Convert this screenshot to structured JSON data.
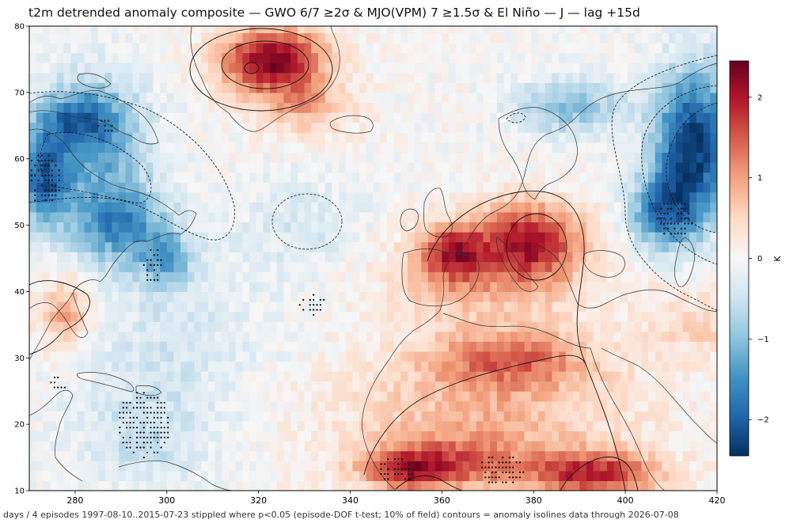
{
  "title": "t2m detrended anomaly composite — GWO 6/7 ≥2σ & MJO(VPM) 7 ≥1.5σ & El Niño — J — lag +15d",
  "footer": "days / 4 episodes   1997-08-10..2015-07-23   stippled where p<0.05 (episode-DOF t-test; 10% of field)   contours = anomaly isolines   data through 2026-07-08",
  "chart_data": {
    "type": "heatmap",
    "x_range": [
      270,
      420
    ],
    "y_range": [
      10,
      80
    ],
    "x_ticks": [
      "280",
      "300",
      "320",
      "340",
      "360",
      "380",
      "400",
      "420"
    ],
    "x_tick_values": [
      280,
      300,
      320,
      340,
      360,
      380,
      400,
      420
    ],
    "y_ticks": [
      "10",
      "20",
      "30",
      "40",
      "50",
      "60",
      "70",
      "80"
    ],
    "y_tick_values": [
      10,
      20,
      30,
      40,
      50,
      60,
      70,
      80
    ],
    "colorbar": {
      "label": "K",
      "range": [
        -2.45,
        2.45
      ],
      "ticks": [
        "−2",
        "−1",
        "0",
        "1",
        "2"
      ],
      "tick_values": [
        -2,
        -1,
        0,
        1,
        2
      ],
      "colormap": "RdBu_r",
      "colors": [
        "#053061",
        "#2166ac",
        "#4393c3",
        "#92c5de",
        "#d1e5f0",
        "#f7f7f7",
        "#fddbc7",
        "#f4a582",
        "#d6604d",
        "#b2182b",
        "#67001f"
      ]
    },
    "anomaly_blobs": [
      {
        "lon": 323,
        "lat": 75,
        "amp": 2.3,
        "sx": 8,
        "sy": 3.5
      },
      {
        "lon": 330,
        "lat": 68,
        "amp": 0.8,
        "sx": 8,
        "sy": 3
      },
      {
        "lon": 278,
        "lat": 37,
        "amp": 1.0,
        "sx": 4,
        "sy": 4
      },
      {
        "lon": 379,
        "lat": 48,
        "amp": 1.8,
        "sx": 8,
        "sy": 4
      },
      {
        "lon": 362,
        "lat": 46,
        "amp": 1.5,
        "sx": 5,
        "sy": 3
      },
      {
        "lon": 370,
        "lat": 42,
        "amp": 0.8,
        "sx": 16,
        "sy": 5
      },
      {
        "lon": 375,
        "lat": 30,
        "amp": 1.1,
        "sx": 12,
        "sy": 3
      },
      {
        "lon": 370,
        "lat": 22,
        "amp": 0.8,
        "sx": 22,
        "sy": 7
      },
      {
        "lon": 393,
        "lat": 12.5,
        "amp": 1.8,
        "sx": 10,
        "sy": 2.5
      },
      {
        "lon": 360,
        "lat": 14,
        "amp": 1.2,
        "sx": 12,
        "sy": 3
      },
      {
        "lon": 352,
        "lat": 13,
        "amp": 1.0,
        "sx": 6,
        "sy": 2
      },
      {
        "lon": 415,
        "lat": 62,
        "amp": -2.4,
        "sx": 6,
        "sy": 8
      },
      {
        "lon": 408,
        "lat": 52,
        "amp": -1.6,
        "sx": 5,
        "sy": 4
      },
      {
        "lon": 388,
        "lat": 68,
        "amp": -1.0,
        "sx": 9,
        "sy": 3
      },
      {
        "lon": 273,
        "lat": 57,
        "amp": -1.8,
        "sx": 4,
        "sy": 5
      },
      {
        "lon": 285,
        "lat": 62,
        "amp": -1.2,
        "sx": 8,
        "sy": 8
      },
      {
        "lon": 290,
        "lat": 50,
        "amp": -1.3,
        "sx": 7,
        "sy": 4
      },
      {
        "lon": 300,
        "lat": 45,
        "amp": -1.0,
        "sx": 4,
        "sy": 3
      },
      {
        "lon": 280,
        "lat": 66,
        "amp": -1.2,
        "sx": 6,
        "sy": 3
      },
      {
        "lon": 330,
        "lat": 50,
        "amp": -0.4,
        "sx": 9,
        "sy": 5
      },
      {
        "lon": 300,
        "lat": 35,
        "amp": -0.4,
        "sx": 15,
        "sy": 10
      },
      {
        "lon": 295,
        "lat": 18,
        "amp": -0.5,
        "sx": 10,
        "sy": 6
      },
      {
        "lon": 415,
        "lat": 35,
        "amp": 0.5,
        "sx": 8,
        "sy": 4
      }
    ],
    "significant_regions": [
      {
        "lon": 273,
        "lat": 57,
        "rlon": 4,
        "rlat": 4
      },
      {
        "lon": 295,
        "lat": 20,
        "rlon": 6,
        "rlat": 5
      },
      {
        "lon": 297,
        "lat": 44,
        "rlon": 2,
        "rlat": 3
      },
      {
        "lon": 332,
        "lat": 38,
        "rlon": 3,
        "rlat": 1.5
      },
      {
        "lon": 411,
        "lat": 51,
        "rlon": 4,
        "rlat": 3
      },
      {
        "lon": 373,
        "lat": 13,
        "rlon": 5,
        "rlat": 2.5
      },
      {
        "lon": 350,
        "lat": 13,
        "rlon": 4,
        "rlat": 2
      },
      {
        "lon": 287,
        "lat": 65,
        "rlon": 2,
        "rlat": 1.5
      },
      {
        "lon": 276,
        "lat": 26,
        "rlon": 2,
        "rlat": 1.2
      }
    ]
  }
}
